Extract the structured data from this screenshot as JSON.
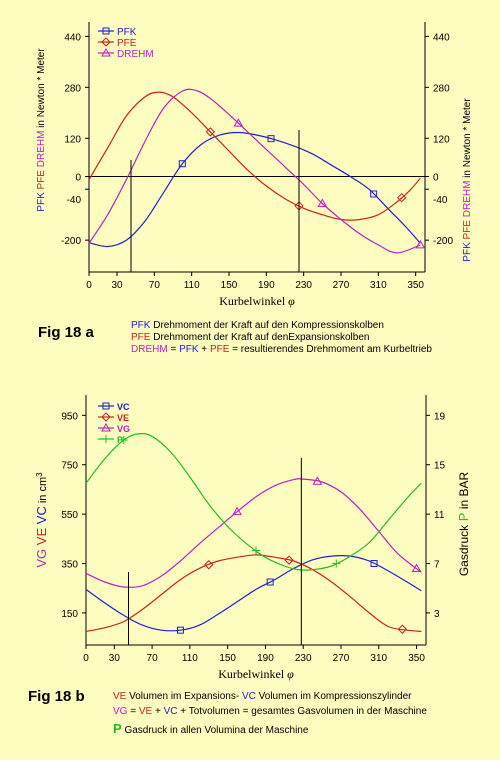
{
  "figures": {
    "a": {
      "label": "Fig 18 a",
      "xlabel_text": "Kurbelwinkel",
      "xlabel_symbol": "φ",
      "left_label_parts": [
        {
          "text": "PFK",
          "color": "#2020d0"
        },
        {
          "text": "PFE",
          "color": "#d02020"
        },
        {
          "text": "DREHM",
          "color": "#c020c0"
        },
        {
          "text": "in Newton * Meter",
          "color": "#000000"
        }
      ],
      "right_label_parts": [
        {
          "text": "PFK",
          "color": "#2020d0"
        },
        {
          "text": "PFE",
          "color": "#d02020"
        },
        {
          "text": "DREHM",
          "color": "#c020c0"
        },
        {
          "text": "in Newton * Meter",
          "color": "#000000"
        }
      ],
      "captions": [
        {
          "parts": [
            {
              "text": "PFK",
              "color": "#2020d0"
            },
            {
              "text": "  Drehmoment der Kraft auf den Kompressionskolben",
              "color": "#000000"
            }
          ]
        },
        {
          "parts": [
            {
              "text": "PFE",
              "color": "#d02020"
            },
            {
              "text": "  Drehmoment der Kraft auf denExpansionskolben",
              "color": "#000000"
            }
          ]
        },
        {
          "parts": [
            {
              "text": "DREHM",
              "color": "#c020c0"
            },
            {
              "text": "  = ",
              "color": "#000000"
            },
            {
              "text": "PFK",
              "color": "#2020d0"
            },
            {
              "text": " + ",
              "color": "#000000"
            },
            {
              "text": "PFE",
              "color": "#d02020"
            },
            {
              "text": " = resultierendes Drehmoment am Kurbeltrieb",
              "color": "#000000"
            }
          ]
        }
      ]
    },
    "b": {
      "label": "Fig 18 b",
      "xlabel_text": "Kurbelwinkel",
      "xlabel_symbol": "φ",
      "left_label_parts": [
        {
          "text": "VG",
          "color": "#c020c0"
        },
        {
          "text": "VE",
          "color": "#d02020"
        },
        {
          "text": "VC",
          "color": "#2020d0"
        },
        {
          "text": "in cm",
          "color": "#000000"
        },
        {
          "text": "3",
          "color": "#000000",
          "sup": true
        }
      ],
      "right_label_parts": [
        {
          "text": "Gasdruck",
          "color": "#000000"
        },
        {
          "text": "P",
          "color": "#20c020"
        },
        {
          "text": "in BAR",
          "color": "#000000"
        }
      ],
      "captions": [
        {
          "parts": [
            {
              "text": "VE",
              "color": "#d02020"
            },
            {
              "text": "  Volumen im Expansions- ",
              "color": "#000000"
            },
            {
              "text": "VC",
              "color": "#2020d0"
            },
            {
              "text": "  Volumen im Kompressionszylinder",
              "color": "#000000"
            }
          ]
        },
        {
          "parts": [
            {
              "text": "VG",
              "color": "#c020c0"
            },
            {
              "text": "  =  ",
              "color": "#000000"
            },
            {
              "text": "VE",
              "color": "#d02020"
            },
            {
              "text": "  +  ",
              "color": "#000000"
            },
            {
              "text": "VC",
              "color": "#2020d0"
            },
            {
              "text": " + Totvolumen = gesamtes Gasvolumen in der Maschine",
              "color": "#000000"
            }
          ]
        },
        {
          "parts": [
            {
              "text": "P",
              "color": "#20c020",
              "big": true
            },
            {
              "text": "  Gasdruck in allen Volumina der Maschine",
              "color": "#000000"
            }
          ]
        }
      ]
    }
  },
  "chart_data": [
    {
      "type": "line",
      "x_ticks": [
        0,
        30,
        70,
        110,
        150,
        190,
        230,
        270,
        310,
        350
      ],
      "xlim": [
        0,
        360
      ],
      "y_ticks": [
        440,
        280,
        120,
        0,
        -40,
        -200
      ],
      "ylim": [
        -300,
        460
      ],
      "zero_line": true,
      "markers": [
        45,
        225
      ],
      "legend": "top-left",
      "series": [
        {
          "name": "PFK",
          "color": "#2020d0",
          "marker": "square",
          "x": [
            0,
            20,
            40,
            60,
            80,
            100,
            120,
            140,
            160,
            180,
            200,
            220,
            240,
            260,
            280,
            300,
            320,
            340,
            355
          ],
          "y": [
            -208,
            -220,
            -200,
            -140,
            -50,
            40,
            100,
            130,
            138,
            130,
            115,
            95,
            70,
            35,
            0,
            -40,
            -100,
            -160,
            -210
          ]
        },
        {
          "name": "PFE",
          "color": "#d02020",
          "marker": "diamond",
          "x": [
            0,
            20,
            40,
            60,
            75,
            90,
            110,
            130,
            150,
            170,
            190,
            210,
            230,
            250,
            270,
            290,
            310,
            330,
            345,
            355
          ],
          "y": [
            -10,
            90,
            190,
            250,
            265,
            250,
            200,
            140,
            80,
            20,
            -30,
            -70,
            -100,
            -120,
            -135,
            -135,
            -120,
            -80,
            -40,
            -5
          ]
        },
        {
          "name": "DREHM",
          "color": "#c020c0",
          "marker": "triangle",
          "x": [
            0,
            20,
            40,
            60,
            80,
            100,
            115,
            130,
            150,
            170,
            190,
            210,
            230,
            250,
            270,
            290,
            310,
            330,
            355
          ],
          "y": [
            -210,
            -120,
            -10,
            110,
            215,
            268,
            270,
            245,
            195,
            140,
            85,
            30,
            -25,
            -85,
            -135,
            -180,
            -215,
            -240,
            -215
          ]
        }
      ]
    },
    {
      "type": "line",
      "x_ticks": [
        0,
        30,
        70,
        110,
        150,
        190,
        230,
        270,
        310,
        350
      ],
      "xlim": [
        0,
        360
      ],
      "y_ticks_left": [
        950,
        750,
        550,
        350,
        150
      ],
      "ylim_left": [
        20,
        1000
      ],
      "y_ticks_right": [
        19,
        15,
        11,
        7,
        3
      ],
      "ylim_right": [
        0.4,
        20
      ],
      "markers": [
        45,
        228
      ],
      "legend": "top-left",
      "series": [
        {
          "name": "VC",
          "color": "#2020d0",
          "marker": "square",
          "axis": "left",
          "x": [
            0,
            20,
            40,
            60,
            80,
            100,
            120,
            140,
            160,
            180,
            200,
            220,
            240,
            260,
            280,
            300,
            320,
            340,
            355
          ],
          "y": [
            245,
            190,
            140,
            100,
            80,
            80,
            100,
            145,
            195,
            245,
            285,
            330,
            365,
            380,
            380,
            360,
            320,
            275,
            240
          ]
        },
        {
          "name": "VE",
          "color": "#d02020",
          "marker": "diamond",
          "axis": "left",
          "x": [
            0,
            20,
            40,
            60,
            80,
            100,
            120,
            140,
            160,
            180,
            200,
            220,
            240,
            260,
            280,
            300,
            320,
            340,
            355
          ],
          "y": [
            75,
            90,
            115,
            165,
            225,
            285,
            330,
            360,
            375,
            385,
            375,
            360,
            325,
            275,
            215,
            150,
            95,
            80,
            75
          ]
        },
        {
          "name": "VG",
          "color": "#c020c0",
          "marker": "triangle",
          "axis": "left",
          "x": [
            0,
            20,
            40,
            60,
            80,
            100,
            120,
            140,
            160,
            180,
            200,
            220,
            230,
            250,
            270,
            290,
            310,
            330,
            355
          ],
          "y": [
            310,
            275,
            255,
            260,
            300,
            360,
            430,
            495,
            560,
            620,
            665,
            690,
            692,
            680,
            640,
            570,
            480,
            390,
            315
          ]
        },
        {
          "name": "P",
          "color": "#20c020",
          "marker": "plus",
          "axis": "right",
          "x": [
            0,
            20,
            40,
            55,
            70,
            90,
            110,
            130,
            150,
            170,
            190,
            210,
            225,
            240,
            260,
            280,
            300,
            320,
            340,
            355
          ],
          "y": [
            13.5,
            15.5,
            17.0,
            17.5,
            17.3,
            16.0,
            14.0,
            11.8,
            10.0,
            8.6,
            7.5,
            6.8,
            6.5,
            6.5,
            6.8,
            7.6,
            8.7,
            10.5,
            12.3,
            13.5
          ]
        }
      ]
    }
  ]
}
